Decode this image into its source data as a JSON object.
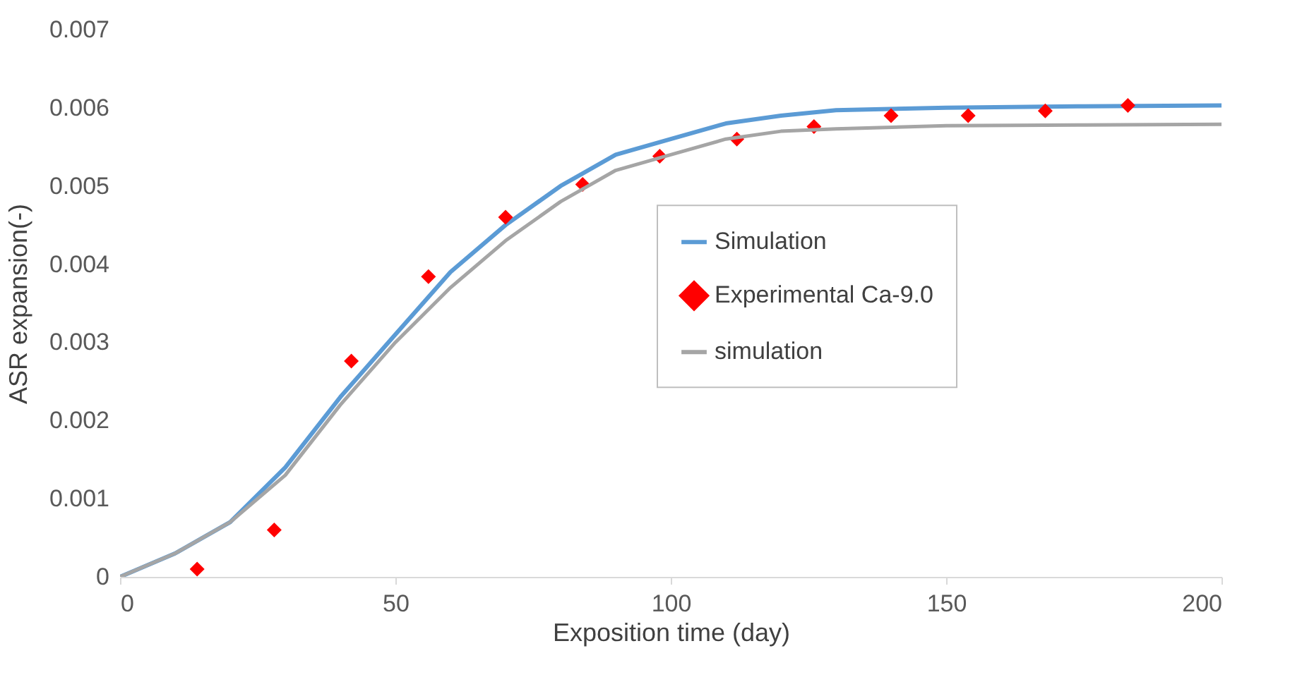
{
  "chart_data": {
    "type": "line",
    "xlabel": "Exposition time (day)",
    "ylabel": "ASR expansion(-)",
    "xlim": [
      0,
      200
    ],
    "xticks": [
      0,
      50,
      100,
      150,
      200
    ],
    "ylim": [
      0,
      0.007
    ],
    "yticks": [
      0,
      0.001,
      0.002,
      0.003,
      0.004,
      0.005,
      0.006,
      0.007
    ],
    "grid": false,
    "legend": "right",
    "series": [
      {
        "name": "Simulation",
        "color": "#5b9bd5",
        "x": [
          0,
          10,
          20,
          30,
          40,
          50,
          60,
          70,
          80,
          90,
          100,
          110,
          120,
          130,
          150,
          175,
          200
        ],
        "values": [
          0,
          0.0003,
          0.0007,
          0.0014,
          0.0023,
          0.0031,
          0.0039,
          0.0045,
          0.005,
          0.0054,
          0.0056,
          0.0058,
          0.0059,
          0.00597,
          0.006,
          0.00602,
          0.00603
        ]
      },
      {
        "name": "Experimental Ca-9.0",
        "type": "scatter",
        "marker": "diamond",
        "color": "#ff0000",
        "x": [
          14,
          28,
          42,
          56,
          70,
          84,
          98,
          112,
          126,
          140,
          154,
          168,
          183
        ],
        "values": [
          0.0001,
          0.0006,
          0.00276,
          0.00384,
          0.0046,
          0.00502,
          0.00538,
          0.0056,
          0.00576,
          0.0059,
          0.0059,
          0.00596,
          0.00603
        ]
      },
      {
        "name": "simulation",
        "color": "#a5a5a5",
        "x": [
          0,
          10,
          20,
          30,
          40,
          50,
          60,
          70,
          80,
          90,
          100,
          110,
          120,
          130,
          150,
          175,
          200
        ],
        "values": [
          0,
          0.0003,
          0.0007,
          0.0013,
          0.0022,
          0.003,
          0.0037,
          0.0043,
          0.0048,
          0.0052,
          0.0054,
          0.0056,
          0.0057,
          0.00573,
          0.00577,
          0.00578,
          0.00579
        ]
      }
    ]
  }
}
